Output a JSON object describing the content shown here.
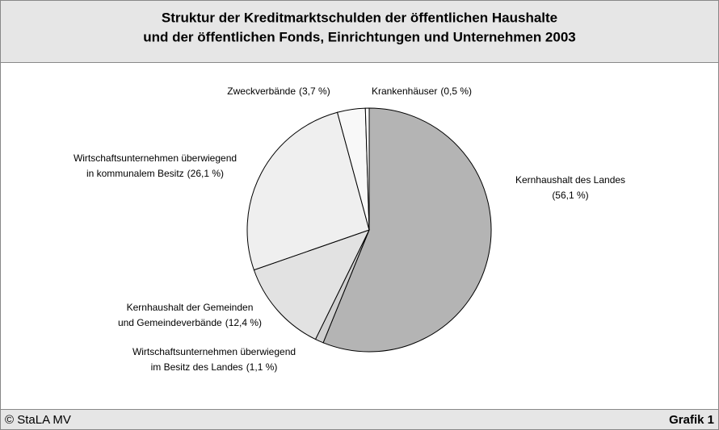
{
  "chart_data": {
    "type": "pie",
    "title": [
      "Struktur der Kreditmarktschulden der öffentlichen Haushalte",
      "und der öffentlichen Fonds, Einrichtungen und Unternehmen 2003"
    ],
    "categories": [
      [
        "Kernhaushalt des Landes"
      ],
      [
        "Wirtschaftsunternehmen überwiegend",
        "im Besitz des Landes"
      ],
      [
        "Kernhaushalt der Gemeinden",
        "und Gemeindeverbände"
      ],
      [
        "Wirtschaftsunternehmen überwiegend",
        "in kommunalem Besitz"
      ],
      [
        "Zweckverbände"
      ],
      [
        "Krankenhäuser"
      ]
    ],
    "values": [
      56.1,
      1.1,
      12.4,
      26.1,
      3.7,
      0.5
    ],
    "value_labels": [
      "(56,1 %)",
      "(1,1 %)",
      "(12,4 %)",
      "(26,1 %)",
      "(3,7 %)",
      "(0,5 %)"
    ],
    "colors": [
      "#b4b4b4",
      "#cfcfcf",
      "#e2e2e2",
      "#efefef",
      "#f8f8f8",
      "#ffffff"
    ]
  },
  "footer": {
    "source": "© StaLA MV",
    "label": "Grafik 1"
  }
}
